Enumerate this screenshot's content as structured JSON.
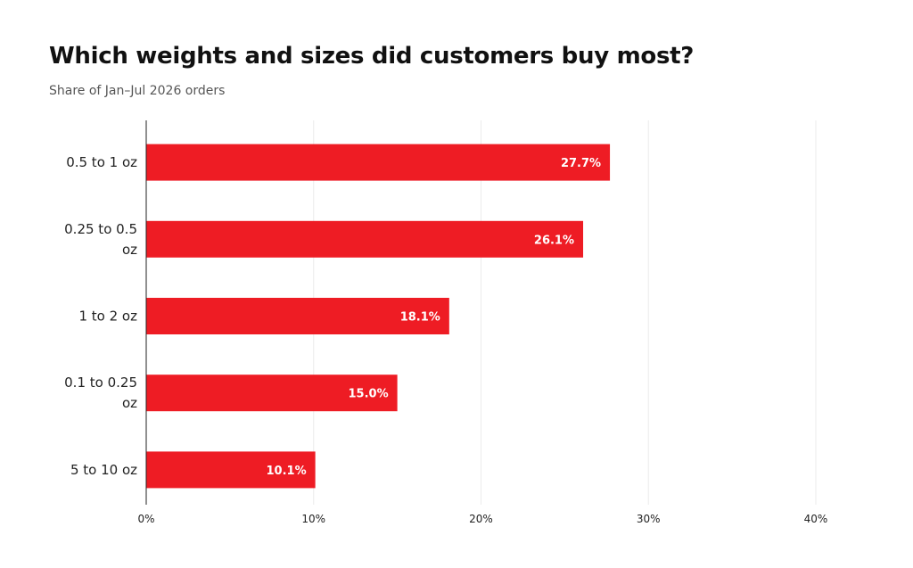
{
  "title": "Which weights and sizes did customers buy most?",
  "subtitle": "Share of Jan–Jul 2026 orders",
  "chart_data": {
    "type": "bar",
    "orientation": "horizontal",
    "title": "Which weights and sizes did customers buy most?",
    "subtitle": "Share of Jan–Jul 2026 orders",
    "categories": [
      "0.5 to 1 oz",
      "0.25 to 0.5 oz",
      "1 to 2 oz",
      "0.1 to 0.25 oz",
      "5 to 10 oz"
    ],
    "values": [
      27.7,
      26.1,
      18.1,
      15.0,
      10.1
    ],
    "data_labels": [
      "27.7%",
      "26.1%",
      "18.1%",
      "15.0%",
      "10.1%"
    ],
    "xlabel": "",
    "ylabel": "",
    "xlim": [
      0,
      40
    ],
    "x_ticks": [
      0,
      10,
      20,
      30,
      40
    ],
    "x_tick_labels": [
      "0%",
      "10%",
      "20%",
      "30%",
      "40%"
    ],
    "grid": true,
    "legend": "none",
    "bar_color": "#ee1c24"
  }
}
